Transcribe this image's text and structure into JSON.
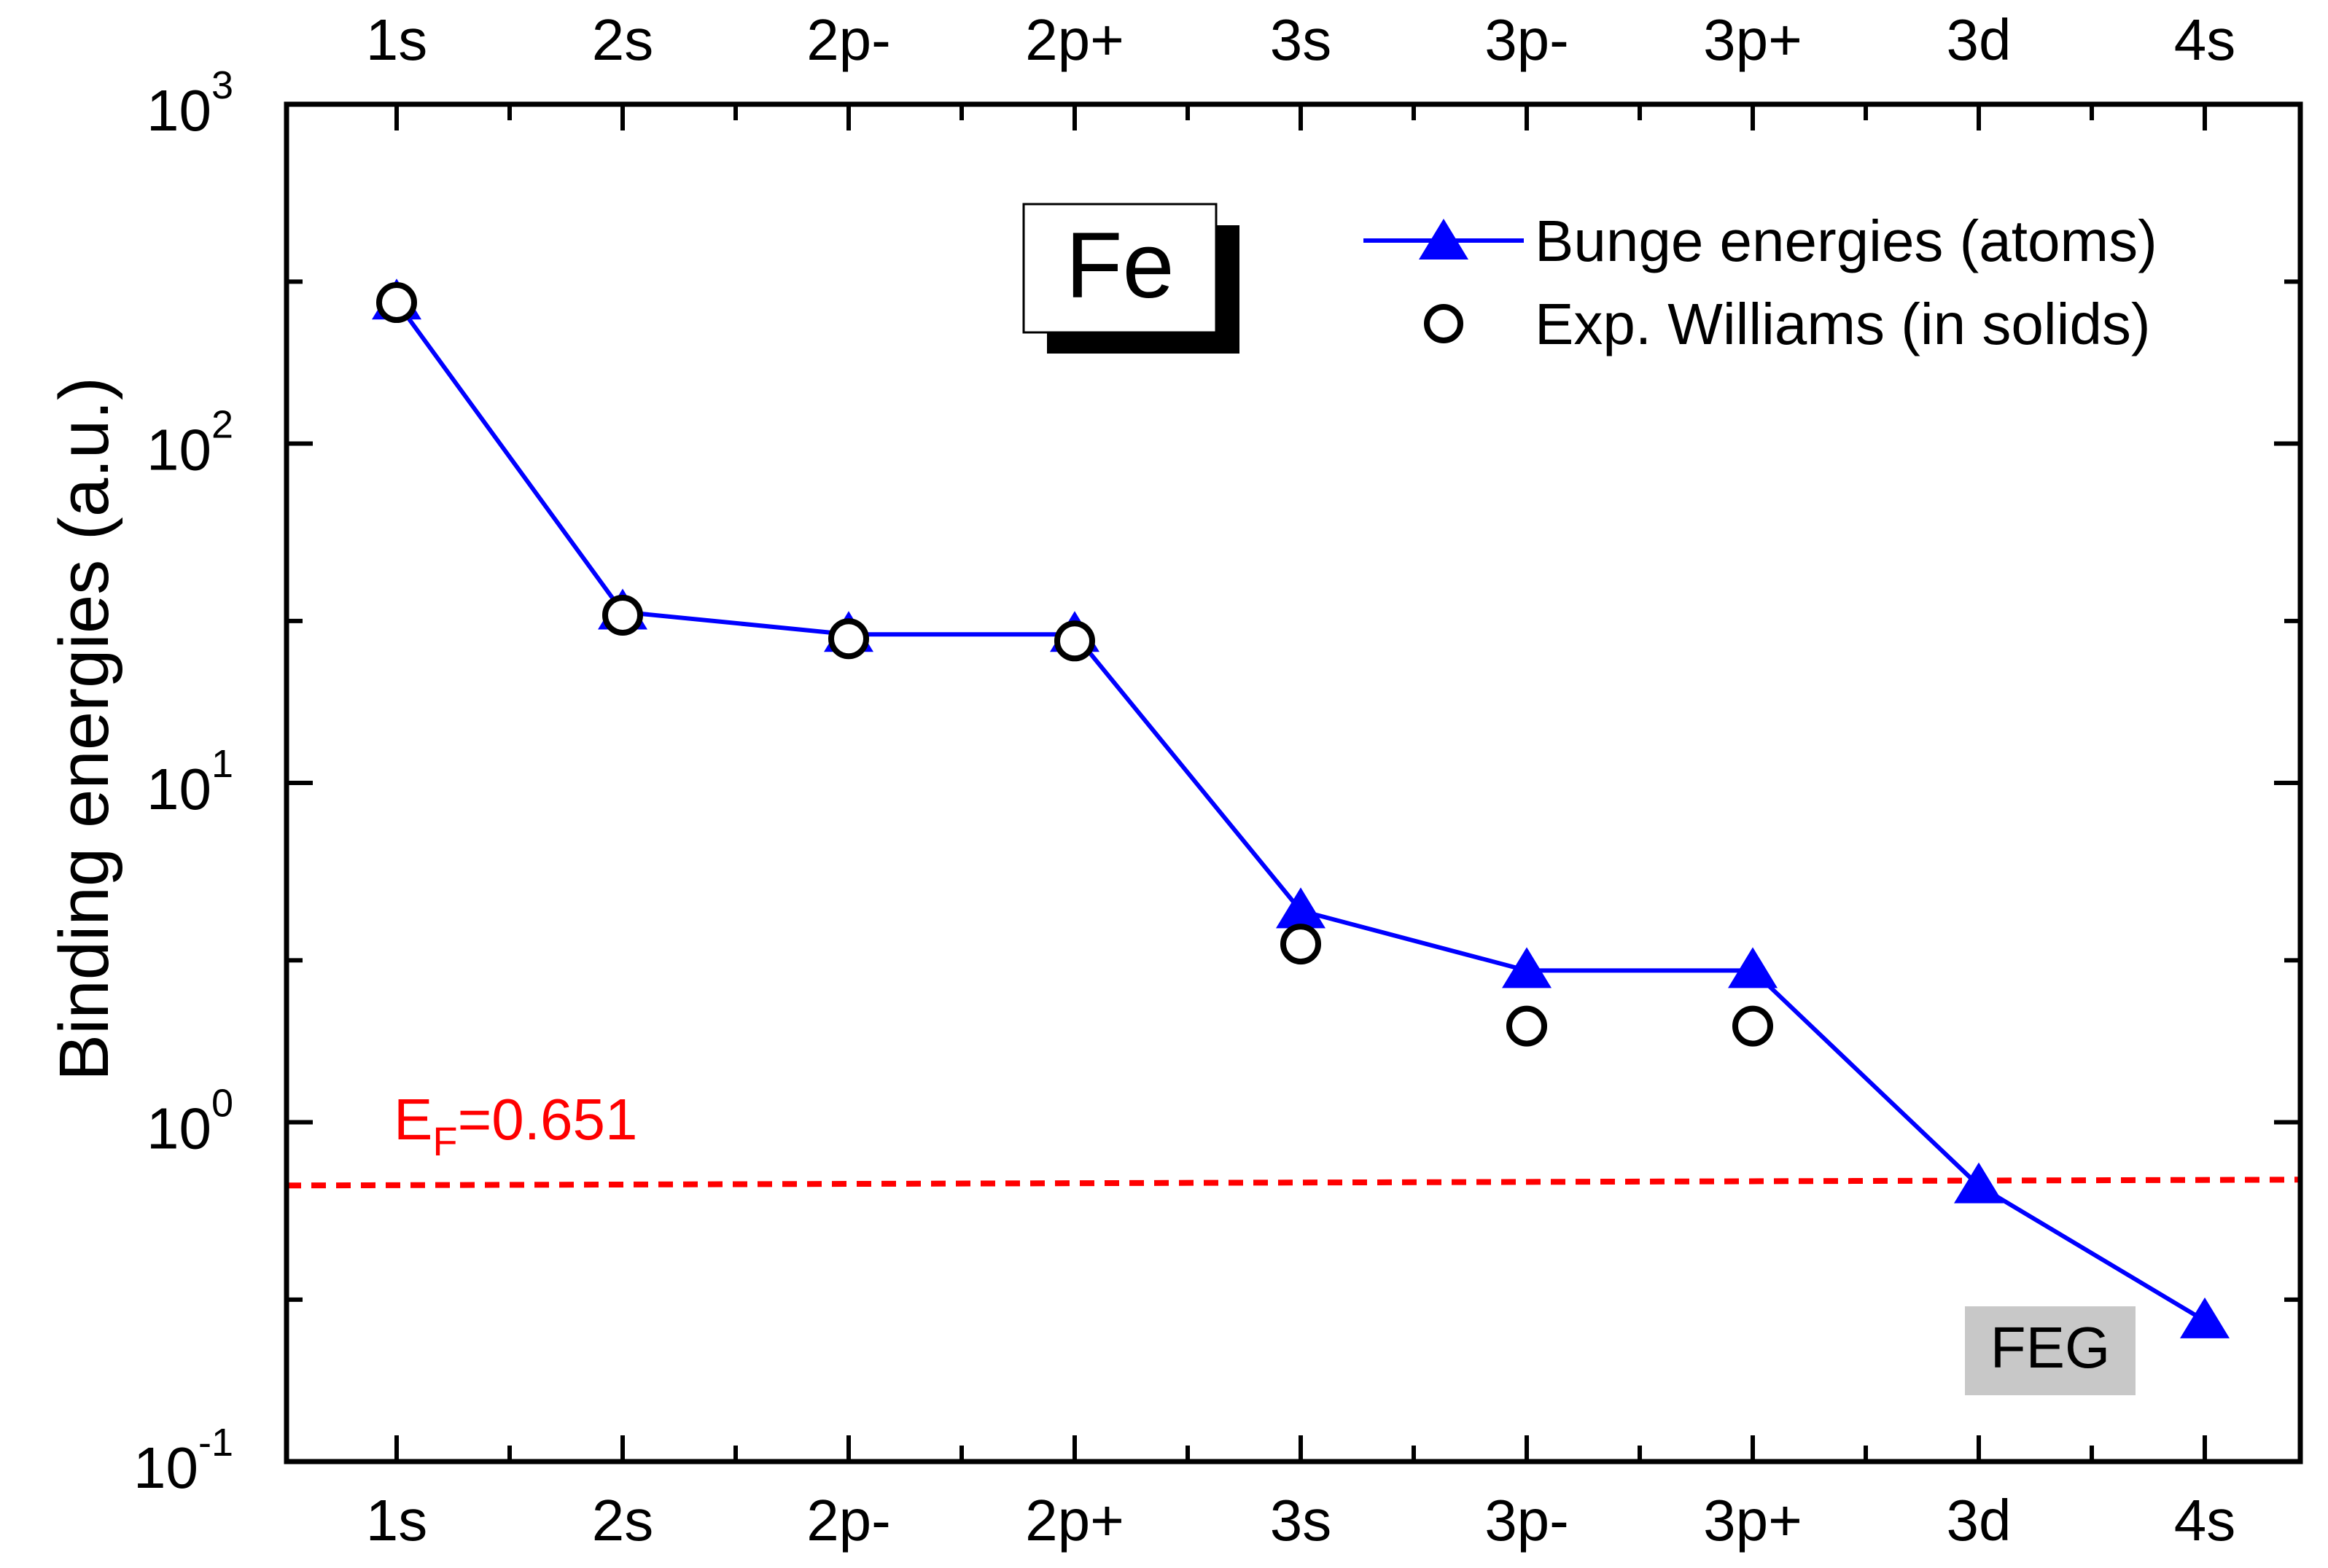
{
  "chart_data": {
    "type": "line",
    "title": "",
    "xlabel": "",
    "ylabel": "Binding energies (a.u.)",
    "yscale": "log",
    "ylim": [
      0.1,
      1000
    ],
    "y_ticks": [
      {
        "value": 0.1,
        "base": "10",
        "exp": "-1"
      },
      {
        "value": 1,
        "base": "10",
        "exp": "0"
      },
      {
        "value": 10,
        "base": "10",
        "exp": "1"
      },
      {
        "value": 100,
        "base": "10",
        "exp": "2"
      },
      {
        "value": 1000,
        "base": "10",
        "exp": "3"
      }
    ],
    "categories": [
      "1s",
      "2s",
      "2p-",
      "2p+",
      "3s",
      "3p-",
      "3p+",
      "3d",
      "4s"
    ],
    "top_categories": [
      "1s",
      "2s",
      "2p-",
      "2p+",
      "3s",
      "3p-",
      "3p+",
      "3d",
      "4s"
    ],
    "series": [
      {
        "name": "Bunge energies (atoms)",
        "color": "#0000ff",
        "marker": "filled-triangle",
        "line": "solid",
        "values": [
          261.4,
          31.9,
          27.4,
          27.4,
          4.2,
          2.8,
          2.8,
          0.65,
          0.26
        ]
      },
      {
        "name": "Exp. Williams (in solids)",
        "color": "#000000",
        "marker": "open-circle",
        "line": "none",
        "values": [
          260.4,
          31.2,
          26.6,
          26.2,
          3.35,
          1.92,
          1.92,
          null,
          null
        ]
      }
    ],
    "reference_line": {
      "label_main": "E",
      "label_sub": "F",
      "label_rest": "=0.651",
      "value": 0.651,
      "color": "#ff0000",
      "style": "dashed"
    },
    "annotations": [
      {
        "text": "Fe",
        "style": "shadow-box"
      },
      {
        "text": "FEG",
        "style": "gray-box"
      }
    ],
    "legend_position": "top-right",
    "grid": false
  }
}
